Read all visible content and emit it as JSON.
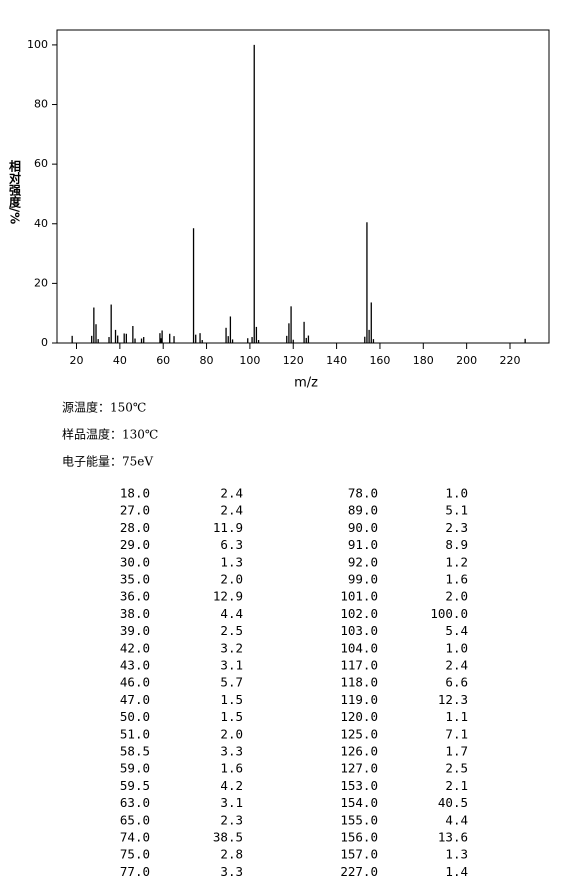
{
  "chart_data": {
    "type": "bar",
    "ylabel": "相对强度/%",
    "xlabel": "m/z",
    "xlim": [
      11,
      238
    ],
    "ylim": [
      0,
      105
    ],
    "xticks": [
      20,
      40,
      60,
      80,
      100,
      120,
      140,
      160,
      180,
      200,
      220
    ],
    "yticks": [
      0,
      20,
      40,
      60,
      80,
      100
    ],
    "color": "#000000",
    "notes": [
      "源温度：150℃",
      "样品温度：130℃",
      "电子能量：75eV"
    ],
    "x": [
      18,
      27,
      28,
      29,
      30,
      35,
      36,
      38,
      39,
      42,
      43,
      46,
      47,
      50,
      51,
      58.5,
      59,
      59.5,
      63,
      65,
      74,
      75,
      77,
      78,
      89,
      90,
      91,
      92,
      99,
      101,
      102,
      103,
      104,
      117,
      118,
      119,
      120,
      125,
      126,
      127,
      153,
      154,
      155,
      156,
      157,
      227
    ],
    "x_labels": [
      "18.0",
      "27.0",
      "28.0",
      "29.0",
      "30.0",
      "35.0",
      "36.0",
      "38.0",
      "39.0",
      "42.0",
      "43.0",
      "46.0",
      "47.0",
      "50.0",
      "51.0",
      "58.5",
      "59.0",
      "59.5",
      "63.0",
      "65.0",
      "74.0",
      "75.0",
      "77.0",
      "78.0",
      "89.0",
      "90.0",
      "91.0",
      "92.0",
      "99.0",
      "101.0",
      "102.0",
      "103.0",
      "104.0",
      "117.0",
      "118.0",
      "119.0",
      "120.0",
      "125.0",
      "126.0",
      "127.0",
      "153.0",
      "154.0",
      "155.0",
      "156.0",
      "157.0",
      "227.0"
    ],
    "values": [
      2.4,
      2.4,
      11.9,
      6.3,
      1.3,
      2,
      12.9,
      4.4,
      2.5,
      3.2,
      3.1,
      5.7,
      1.5,
      1.5,
      2,
      3.3,
      1.6,
      4.2,
      3.1,
      2.3,
      38.5,
      2.8,
      3.3,
      1,
      5.1,
      2.3,
      8.9,
      1.2,
      1.6,
      2,
      100,
      5.4,
      1,
      2.4,
      6.6,
      12.3,
      1.1,
      7.1,
      1.7,
      2.5,
      2.1,
      40.5,
      4.4,
      13.6,
      1.3,
      1.4
    ],
    "value_labels": [
      "2.4",
      "2.4",
      "11.9",
      "6.3",
      "1.3",
      "2.0",
      "12.9",
      "4.4",
      "2.5",
      "3.2",
      "3.1",
      "5.7",
      "1.5",
      "1.5",
      "2.0",
      "3.3",
      "1.6",
      "4.2",
      "3.1",
      "2.3",
      "38.5",
      "2.8",
      "3.3",
      "1.0",
      "5.1",
      "2.3",
      "8.9",
      "1.2",
      "1.6",
      "2.0",
      "100.0",
      "5.4",
      "1.0",
      "2.4",
      "6.6",
      "12.3",
      "1.1",
      "7.1",
      "1.7",
      "2.5",
      "2.1",
      "40.5",
      "4.4",
      "13.6",
      "1.3",
      "1.4"
    ]
  }
}
